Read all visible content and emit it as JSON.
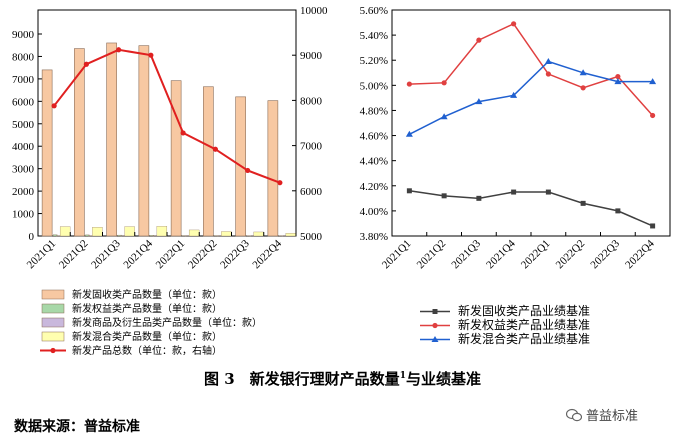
{
  "left_chart": {
    "categories": [
      "2021Q1",
      "2021Q2",
      "2021Q3",
      "2021Q4",
      "2022Q1",
      "2022Q2",
      "2022Q3",
      "2022Q4"
    ],
    "y_left_ticks": [
      "0",
      "1000",
      "2000",
      "3000",
      "4000",
      "5000",
      "6000",
      "7000",
      "8000",
      "9000"
    ],
    "y_right_ticks": [
      "5000",
      "6000",
      "7000",
      "8000",
      "9000",
      "10000"
    ]
  },
  "right_chart": {
    "categories": [
      "2021Q1",
      "2021Q2",
      "2021Q3",
      "2021Q4",
      "2022Q1",
      "2022Q2",
      "2022Q3",
      "2022Q4"
    ],
    "y_ticks": [
      "3.80%",
      "4.00%",
      "4.20%",
      "4.40%",
      "4.60%",
      "4.80%",
      "5.00%",
      "5.20%",
      "5.40%",
      "5.60%"
    ]
  },
  "legend_left": [
    {
      "label": "新发固收类产品数量（单位：款）",
      "color": "#f7c8a2"
    },
    {
      "label": "新发权益类产品数量（单位：款）",
      "color": "#a8d8a8"
    },
    {
      "label": "新发商品及衍生品类产品数量（单位：款）",
      "color": "#c9b8dc"
    },
    {
      "label": "新发混合类产品数量（单位：款）",
      "color": "#ffffb0"
    },
    {
      "label": "新发产品总数（单位：款，右轴）",
      "color": "#e02020"
    }
  ],
  "legend_right": [
    {
      "label": "新发固收类产品业绩基准",
      "color": "#404040"
    },
    {
      "label": "新发权益类产品业绩基准",
      "color": "#e04040"
    },
    {
      "label": "新发混合类产品业绩基准",
      "color": "#2060d0"
    }
  ],
  "caption": {
    "prefix": "图 3　新发银行理财产品数量",
    "sup": "1",
    "suffix": "与业绩基准"
  },
  "source": "数据来源：普益标准",
  "watermark": "普益标准",
  "chart_data": [
    {
      "type": "bar",
      "categories": [
        "2021Q1",
        "2021Q2",
        "2021Q3",
        "2021Q4",
        "2022Q1",
        "2022Q2",
        "2022Q3",
        "2022Q4"
      ],
      "ylim": [
        0,
        9000
      ],
      "y2lim": [
        5000,
        10000
      ],
      "series": [
        {
          "name": "新发固收类产品数量（单位：款）",
          "type": "bar",
          "axis": "left",
          "color": "#f7c8a2",
          "values": [
            7400,
            8350,
            8600,
            8480,
            6920,
            6650,
            6200,
            6030
          ]
        },
        {
          "name": "新发权益类产品数量（单位：款）",
          "type": "bar",
          "axis": "left",
          "color": "#a8d8a8",
          "values": [
            60,
            50,
            40,
            30,
            20,
            20,
            15,
            10
          ]
        },
        {
          "name": "新发商品及衍生品类产品数量（单位：款）",
          "type": "bar",
          "axis": "left",
          "color": "#c9b8dc",
          "values": [
            10,
            10,
            5,
            5,
            5,
            5,
            5,
            5
          ]
        },
        {
          "name": "新发混合类产品数量（单位：款）",
          "type": "bar",
          "axis": "left",
          "color": "#ffffb0",
          "values": [
            420,
            390,
            420,
            430,
            270,
            200,
            180,
            120
          ]
        },
        {
          "name": "新发产品总数（单位：款，右轴）",
          "type": "line",
          "axis": "right",
          "color": "#e02020",
          "values": [
            7880,
            8800,
            9120,
            9000,
            7280,
            6920,
            6450,
            6180
          ]
        }
      ]
    },
    {
      "type": "line",
      "categories": [
        "2021Q1",
        "2021Q2",
        "2021Q3",
        "2021Q4",
        "2022Q1",
        "2022Q2",
        "2022Q3",
        "2022Q4"
      ],
      "ylim": [
        3.8,
        5.6
      ],
      "series": [
        {
          "name": "新发固收类产品业绩基准",
          "color": "#404040",
          "marker": "square",
          "values": [
            4.16,
            4.12,
            4.1,
            4.15,
            4.15,
            4.06,
            4.0,
            3.88
          ]
        },
        {
          "name": "新发权益类产品业绩基准",
          "color": "#e04040",
          "marker": "circle",
          "values": [
            5.01,
            5.02,
            5.36,
            5.49,
            5.09,
            4.98,
            5.07,
            4.76
          ]
        },
        {
          "name": "新发混合类产品业绩基准",
          "color": "#2060d0",
          "marker": "triangle",
          "values": [
            4.61,
            4.75,
            4.87,
            4.92,
            5.19,
            5.1,
            5.03,
            5.03
          ]
        }
      ]
    }
  ]
}
